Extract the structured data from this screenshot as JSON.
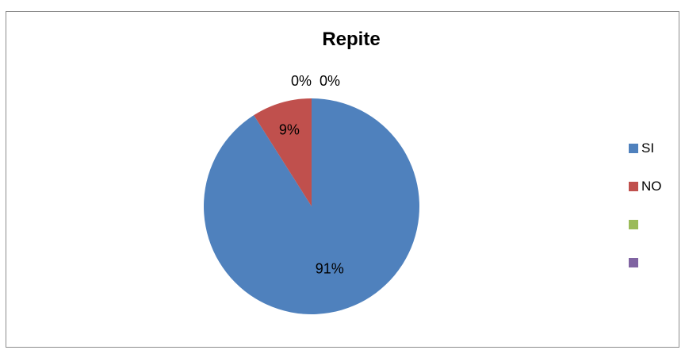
{
  "chart_data": {
    "type": "pie",
    "title": "Repite",
    "categories": [
      "SI",
      "NO",
      "",
      ""
    ],
    "values": [
      91,
      9,
      0,
      0
    ],
    "data_labels": [
      "91%",
      "9%",
      "0%",
      "0%"
    ],
    "colors": [
      "#4f81bd",
      "#c0504d",
      "#9bbb59",
      "#8064a2"
    ],
    "legend_position": "right"
  }
}
